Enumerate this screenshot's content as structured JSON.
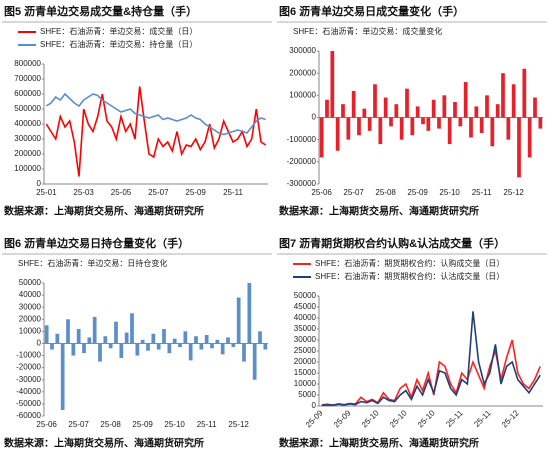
{
  "chart_data": [
    {
      "type": "line",
      "title": "图5  沥青单边交易成交量&持仓量（手）",
      "source": "数据来源：上海期货交易所、海通期货研究所",
      "categories": [
        "25-01",
        null,
        null,
        null,
        null,
        null,
        null,
        null,
        "25-03",
        null,
        null,
        null,
        null,
        null,
        null,
        null,
        "25-05",
        null,
        null,
        null,
        null,
        null,
        null,
        null,
        "25-07",
        null,
        null,
        null,
        null,
        null,
        null,
        null,
        "25-09",
        null,
        null,
        null,
        null,
        null,
        null,
        null,
        "25-11",
        null,
        null,
        null,
        null,
        null,
        null,
        null
      ],
      "series": [
        {
          "name": "SHFE：石油沥青：单边交易：成交量（日）",
          "color": "#ff0000",
          "values": [
            400000,
            350000,
            300000,
            450000,
            380000,
            420000,
            280000,
            50000,
            500000,
            400000,
            350000,
            450000,
            600000,
            420000,
            380000,
            300000,
            450000,
            350000,
            400000,
            300000,
            650000,
            420000,
            200000,
            180000,
            300000,
            250000,
            280000,
            220000,
            350000,
            200000,
            260000,
            250000,
            300000,
            230000,
            280000,
            400000,
            240000,
            300000,
            420000,
            350000,
            280000,
            300000,
            350000,
            250000,
            300000,
            500000,
            280000,
            260000
          ]
        },
        {
          "name": "SHFE：石油沥青：单边交易：持仓量（日）",
          "color": "#5b8fc9",
          "values": [
            520000,
            540000,
            580000,
            560000,
            600000,
            570000,
            540000,
            520000,
            560000,
            580000,
            600000,
            590000,
            560000,
            540000,
            520000,
            500000,
            480000,
            490000,
            500000,
            470000,
            460000,
            450000,
            440000,
            450000,
            460000,
            430000,
            440000,
            430000,
            420000,
            430000,
            440000,
            460000,
            440000,
            430000,
            400000,
            380000,
            360000,
            340000,
            330000,
            340000,
            350000,
            360000,
            350000,
            340000,
            380000,
            420000,
            440000,
            430000
          ]
        }
      ],
      "ylim": [
        0,
        800000
      ],
      "yticks": [
        0,
        100000,
        200000,
        300000,
        400000,
        500000,
        600000,
        700000,
        800000
      ]
    },
    {
      "type": "bar",
      "title": "图6  沥青单边交易日成交量变化（手）",
      "source": "数据来源：上海期货交易所、海通期货研究所",
      "categories": [
        "25-06",
        null,
        null,
        null,
        null,
        null,
        "25-07",
        null,
        null,
        null,
        null,
        null,
        "25-08",
        null,
        null,
        null,
        null,
        null,
        "25-09",
        null,
        null,
        null,
        null,
        null,
        "25-10",
        null,
        null,
        null,
        null,
        null,
        "25-11",
        null,
        null,
        null,
        null,
        null,
        "25-12",
        null,
        null,
        null,
        null,
        null
      ],
      "series": [
        {
          "name": "SHFE：石油沥青：单边交易：成交量变化",
          "color": "#e8202a",
          "values": [
            -180000,
            80000,
            300000,
            -150000,
            60000,
            -100000,
            120000,
            -80000,
            40000,
            -60000,
            150000,
            -120000,
            90000,
            -40000,
            60000,
            -100000,
            130000,
            -80000,
            50000,
            -30000,
            -60000,
            80000,
            -50000,
            100000,
            -120000,
            70000,
            -40000,
            160000,
            -90000,
            50000,
            -70000,
            100000,
            -130000,
            60000,
            200000,
            -100000,
            150000,
            -270000,
            220000,
            -180000,
            90000,
            -50000
          ]
        }
      ],
      "ylim": [
        -300000,
        300000
      ],
      "yticks": [
        -300000,
        -200000,
        -100000,
        0,
        100000,
        200000,
        300000
      ]
    },
    {
      "type": "bar",
      "title": "图6  沥青单边交易日持仓量变化（手）",
      "source": "数据来源：上海期货交易所、海通期货研究所",
      "categories": [
        "25-06",
        null,
        null,
        null,
        null,
        null,
        "25-07",
        null,
        null,
        null,
        null,
        null,
        "25-08",
        null,
        null,
        null,
        null,
        null,
        "25-09",
        null,
        null,
        null,
        null,
        null,
        "25-10",
        null,
        null,
        null,
        null,
        null,
        "25-11",
        null,
        null,
        null,
        null,
        null,
        "25-12",
        null,
        null,
        null,
        null,
        null
      ],
      "series": [
        {
          "name": "SHFE：石油沥青：单边交易：日持仓变化",
          "color": "#5b8fc9",
          "values": [
            15000,
            -5000,
            8000,
            -55000,
            20000,
            -10000,
            12000,
            -8000,
            5000,
            22000,
            -15000,
            6000,
            -4000,
            18000,
            -12000,
            9000,
            25000,
            -10000,
            3000,
            -6000,
            8000,
            -5000,
            12000,
            -8000,
            4000,
            -3000,
            10000,
            -14000,
            6000,
            -5000,
            7000,
            -4000,
            3000,
            -9000,
            5000,
            -3000,
            38000,
            -15000,
            50000,
            -30000,
            10000,
            -5000
          ]
        }
      ],
      "ylim": [
        -60000,
        50000
      ],
      "yticks": [
        -60000,
        -50000,
        -40000,
        -30000,
        -20000,
        -10000,
        0,
        10000,
        20000,
        30000,
        40000,
        50000
      ]
    },
    {
      "type": "line",
      "title": "图7  沥青期货期权合约认购&认沽成交量（手）",
      "source": "数据来源：上海期货交易所、海通期货研究所",
      "categories": [
        "25-09",
        null,
        null,
        null,
        null,
        "25-09",
        null,
        null,
        null,
        null,
        "25-10",
        null,
        null,
        null,
        null,
        "25-10",
        null,
        null,
        null,
        null,
        "25-10",
        null,
        null,
        null,
        null,
        "25-11",
        null,
        null,
        null,
        null,
        "25-11",
        null,
        null,
        null,
        null,
        "25-12",
        null,
        null,
        null,
        null
      ],
      "series": [
        {
          "name": "SHFE：石油沥青：期货期权合约：认购成交量（日）",
          "color": "#ff2020",
          "values": [
            500,
            800,
            300,
            1000,
            600,
            1200,
            900,
            4000,
            2000,
            3000,
            1500,
            6000,
            3000,
            2500,
            8000,
            10000,
            4000,
            12000,
            7000,
            15000,
            5000,
            20000,
            18000,
            10000,
            6000,
            15000,
            12000,
            20000,
            14000,
            8000,
            18000,
            25000,
            12000,
            22000,
            30000,
            15000,
            10000,
            8000,
            12000,
            18000
          ]
        },
        {
          "name": "SHFE：石油沥青：期货期权合约：认沽成交量（日）",
          "color": "#1f3f7a",
          "values": [
            300,
            500,
            400,
            800,
            500,
            900,
            700,
            2000,
            1500,
            2500,
            1200,
            4000,
            2500,
            2000,
            5000,
            7000,
            3000,
            9000,
            5000,
            12000,
            6000,
            16000,
            15000,
            8000,
            5000,
            12000,
            10000,
            43000,
            20000,
            10000,
            15000,
            28000,
            10000,
            18000,
            20000,
            12000,
            9000,
            6000,
            10000,
            14000
          ]
        }
      ],
      "ylim": [
        0,
        50000
      ],
      "yticks": [
        0,
        5000,
        10000,
        15000,
        20000,
        25000,
        30000,
        35000,
        40000,
        45000,
        50000
      ]
    }
  ]
}
